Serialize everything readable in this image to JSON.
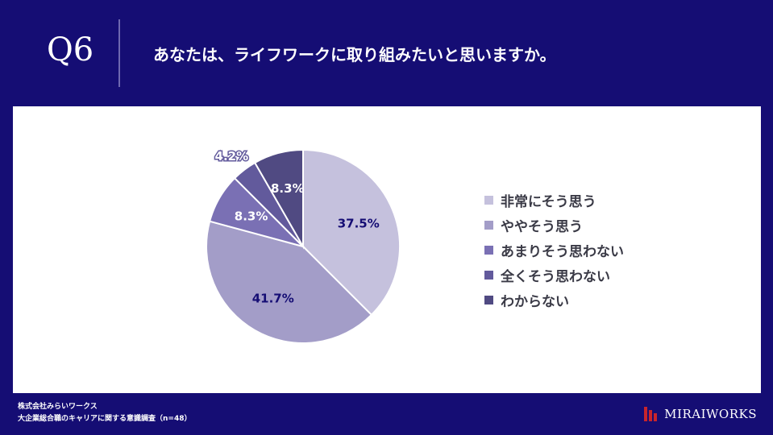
{
  "header": {
    "question_number": "Q6",
    "question_text": "あなたは、ライフワークに取り組みたいと思いますか。"
  },
  "chart_data": {
    "type": "pie",
    "title": "",
    "slices": [
      {
        "label": "非常にそう思う",
        "value": 37.5,
        "value_label": "37.5%",
        "color": "#c5c1dd"
      },
      {
        "label": "ややそう思う",
        "value": 41.7,
        "value_label": "41.7%",
        "color": "#a39dc8"
      },
      {
        "label": "あまりそう思わない",
        "value": 8.3,
        "value_label": "8.3%",
        "color": "#7a70b4"
      },
      {
        "label": "全くそう思わない",
        "value": 4.2,
        "value_label": "4.2%",
        "color": "#625a9c"
      },
      {
        "label": "わからない",
        "value": 8.3,
        "value_label": "8.3%",
        "color": "#504a82"
      }
    ],
    "legend_placement": "right",
    "label_colors": {
      "dark": "#150d74",
      "light": "#ffffff"
    }
  },
  "footer": {
    "company": "株式会社みらいワークス",
    "survey": "大企業総合職のキャリアに関する意識調査（n=48）"
  },
  "logo": {
    "text": "MIRAIWORKS",
    "bar_color": "#c8242c"
  }
}
